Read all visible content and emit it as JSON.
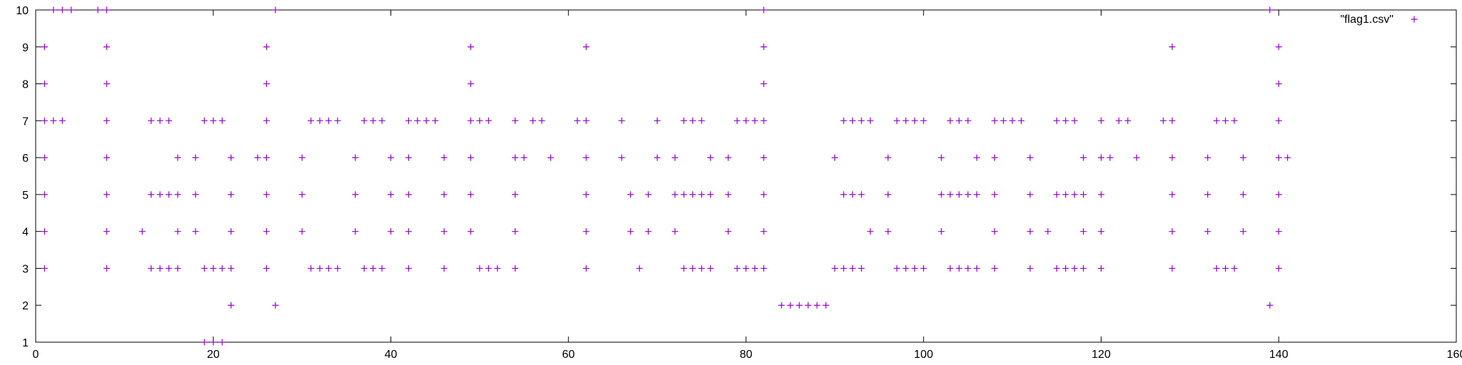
{
  "chart_data": {
    "type": "scatter",
    "title": "",
    "xlabel": "",
    "ylabel": "",
    "xlim": [
      0,
      160
    ],
    "ylim": [
      1,
      10
    ],
    "xticks": [
      0,
      20,
      40,
      60,
      80,
      100,
      120,
      140,
      160
    ],
    "yticks": [
      1,
      2,
      3,
      4,
      5,
      6,
      7,
      8,
      9,
      10
    ],
    "grid": false,
    "legend_position": "top-right",
    "series": [
      {
        "name": "\"flag1.csv\"",
        "color": "#9400d3",
        "marker": "plus",
        "points": [
          [
            1,
            3
          ],
          [
            1,
            4
          ],
          [
            1,
            5
          ],
          [
            1,
            6
          ],
          [
            1,
            7
          ],
          [
            1,
            8
          ],
          [
            1,
            9
          ],
          [
            2,
            7
          ],
          [
            2,
            10
          ],
          [
            3,
            7
          ],
          [
            3,
            10
          ],
          [
            4,
            10
          ],
          [
            7,
            10
          ],
          [
            8,
            3
          ],
          [
            8,
            4
          ],
          [
            8,
            5
          ],
          [
            8,
            6
          ],
          [
            8,
            7
          ],
          [
            8,
            8
          ],
          [
            8,
            9
          ],
          [
            8,
            10
          ],
          [
            12,
            4
          ],
          [
            13,
            3
          ],
          [
            13,
            5
          ],
          [
            13,
            7
          ],
          [
            14,
            3
          ],
          [
            14,
            5
          ],
          [
            14,
            7
          ],
          [
            15,
            3
          ],
          [
            15,
            5
          ],
          [
            15,
            7
          ],
          [
            16,
            3
          ],
          [
            16,
            4
          ],
          [
            16,
            5
          ],
          [
            16,
            6
          ],
          [
            18,
            4
          ],
          [
            18,
            5
          ],
          [
            18,
            6
          ],
          [
            19,
            1
          ],
          [
            19,
            3
          ],
          [
            19,
            7
          ],
          [
            20,
            1
          ],
          [
            20,
            3
          ],
          [
            20,
            7
          ],
          [
            21,
            1
          ],
          [
            21,
            3
          ],
          [
            21,
            7
          ],
          [
            22,
            2
          ],
          [
            22,
            3
          ],
          [
            22,
            4
          ],
          [
            22,
            5
          ],
          [
            22,
            6
          ],
          [
            25,
            6
          ],
          [
            26,
            3
          ],
          [
            26,
            4
          ],
          [
            26,
            5
          ],
          [
            26,
            6
          ],
          [
            26,
            7
          ],
          [
            26,
            8
          ],
          [
            26,
            9
          ],
          [
            27,
            2
          ],
          [
            27,
            10
          ],
          [
            30,
            4
          ],
          [
            30,
            5
          ],
          [
            30,
            6
          ],
          [
            31,
            3
          ],
          [
            31,
            7
          ],
          [
            32,
            3
          ],
          [
            32,
            7
          ],
          [
            33,
            3
          ],
          [
            33,
            7
          ],
          [
            34,
            3
          ],
          [
            34,
            7
          ],
          [
            36,
            4
          ],
          [
            36,
            5
          ],
          [
            36,
            6
          ],
          [
            37,
            3
          ],
          [
            37,
            7
          ],
          [
            38,
            3
          ],
          [
            38,
            7
          ],
          [
            39,
            3
          ],
          [
            39,
            7
          ],
          [
            40,
            4
          ],
          [
            40,
            5
          ],
          [
            40,
            6
          ],
          [
            42,
            3
          ],
          [
            42,
            4
          ],
          [
            42,
            5
          ],
          [
            42,
            6
          ],
          [
            42,
            7
          ],
          [
            43,
            7
          ],
          [
            44,
            7
          ],
          [
            45,
            7
          ],
          [
            46,
            3
          ],
          [
            46,
            4
          ],
          [
            46,
            5
          ],
          [
            46,
            6
          ],
          [
            49,
            4
          ],
          [
            49,
            5
          ],
          [
            49,
            6
          ],
          [
            49,
            7
          ],
          [
            49,
            8
          ],
          [
            49,
            9
          ],
          [
            50,
            3
          ],
          [
            50,
            7
          ],
          [
            51,
            3
          ],
          [
            51,
            7
          ],
          [
            52,
            3
          ],
          [
            54,
            3
          ],
          [
            54,
            4
          ],
          [
            54,
            5
          ],
          [
            54,
            6
          ],
          [
            54,
            7
          ],
          [
            55,
            6
          ],
          [
            56,
            7
          ],
          [
            57,
            7
          ],
          [
            58,
            6
          ],
          [
            61,
            7
          ],
          [
            62,
            3
          ],
          [
            62,
            4
          ],
          [
            62,
            5
          ],
          [
            62,
            6
          ],
          [
            62,
            7
          ],
          [
            62,
            9
          ],
          [
            66,
            6
          ],
          [
            66,
            7
          ],
          [
            67,
            4
          ],
          [
            67,
            5
          ],
          [
            68,
            3
          ],
          [
            69,
            4
          ],
          [
            69,
            5
          ],
          [
            70,
            6
          ],
          [
            70,
            7
          ],
          [
            72,
            4
          ],
          [
            72,
            5
          ],
          [
            72,
            6
          ],
          [
            73,
            3
          ],
          [
            73,
            5
          ],
          [
            73,
            7
          ],
          [
            74,
            3
          ],
          [
            74,
            5
          ],
          [
            74,
            7
          ],
          [
            75,
            3
          ],
          [
            75,
            5
          ],
          [
            75,
            7
          ],
          [
            76,
            3
          ],
          [
            76,
            5
          ],
          [
            76,
            6
          ],
          [
            78,
            4
          ],
          [
            78,
            5
          ],
          [
            78,
            6
          ],
          [
            79,
            3
          ],
          [
            79,
            7
          ],
          [
            80,
            3
          ],
          [
            80,
            7
          ],
          [
            81,
            3
          ],
          [
            81,
            7
          ],
          [
            82,
            3
          ],
          [
            82,
            4
          ],
          [
            82,
            5
          ],
          [
            82,
            6
          ],
          [
            82,
            7
          ],
          [
            82,
            8
          ],
          [
            82,
            9
          ],
          [
            82,
            10
          ],
          [
            84,
            2
          ],
          [
            85,
            2
          ],
          [
            86,
            2
          ],
          [
            87,
            2
          ],
          [
            88,
            2
          ],
          [
            89,
            2
          ],
          [
            90,
            3
          ],
          [
            90,
            6
          ],
          [
            91,
            3
          ],
          [
            91,
            5
          ],
          [
            91,
            7
          ],
          [
            92,
            3
          ],
          [
            92,
            5
          ],
          [
            92,
            7
          ],
          [
            93,
            3
          ],
          [
            93,
            5
          ],
          [
            93,
            7
          ],
          [
            94,
            4
          ],
          [
            94,
            7
          ],
          [
            96,
            4
          ],
          [
            96,
            5
          ],
          [
            96,
            6
          ],
          [
            97,
            3
          ],
          [
            97,
            7
          ],
          [
            98,
            3
          ],
          [
            98,
            7
          ],
          [
            99,
            3
          ],
          [
            99,
            7
          ],
          [
            100,
            3
          ],
          [
            100,
            7
          ],
          [
            102,
            4
          ],
          [
            102,
            5
          ],
          [
            102,
            6
          ],
          [
            103,
            3
          ],
          [
            103,
            5
          ],
          [
            103,
            7
          ],
          [
            104,
            3
          ],
          [
            104,
            5
          ],
          [
            104,
            7
          ],
          [
            105,
            3
          ],
          [
            105,
            5
          ],
          [
            105,
            7
          ],
          [
            106,
            3
          ],
          [
            106,
            5
          ],
          [
            106,
            6
          ],
          [
            108,
            3
          ],
          [
            108,
            4
          ],
          [
            108,
            5
          ],
          [
            108,
            6
          ],
          [
            108,
            7
          ],
          [
            109,
            7
          ],
          [
            110,
            7
          ],
          [
            111,
            7
          ],
          [
            112,
            3
          ],
          [
            112,
            4
          ],
          [
            112,
            5
          ],
          [
            112,
            6
          ],
          [
            114,
            4
          ],
          [
            115,
            3
          ],
          [
            115,
            5
          ],
          [
            115,
            7
          ],
          [
            116,
            3
          ],
          [
            116,
            5
          ],
          [
            116,
            7
          ],
          [
            117,
            3
          ],
          [
            117,
            5
          ],
          [
            117,
            7
          ],
          [
            118,
            3
          ],
          [
            118,
            4
          ],
          [
            118,
            5
          ],
          [
            118,
            6
          ],
          [
            120,
            3
          ],
          [
            120,
            4
          ],
          [
            120,
            5
          ],
          [
            120,
            6
          ],
          [
            120,
            7
          ],
          [
            121,
            6
          ],
          [
            122,
            7
          ],
          [
            123,
            7
          ],
          [
            124,
            6
          ],
          [
            127,
            7
          ],
          [
            128,
            3
          ],
          [
            128,
            4
          ],
          [
            128,
            5
          ],
          [
            128,
            6
          ],
          [
            128,
            7
          ],
          [
            128,
            9
          ],
          [
            132,
            4
          ],
          [
            132,
            5
          ],
          [
            132,
            6
          ],
          [
            133,
            3
          ],
          [
            133,
            7
          ],
          [
            134,
            3
          ],
          [
            134,
            7
          ],
          [
            135,
            3
          ],
          [
            135,
            7
          ],
          [
            136,
            4
          ],
          [
            136,
            5
          ],
          [
            136,
            6
          ],
          [
            139,
            2
          ],
          [
            139,
            10
          ],
          [
            140,
            3
          ],
          [
            140,
            4
          ],
          [
            140,
            5
          ],
          [
            140,
            6
          ],
          [
            140,
            7
          ],
          [
            140,
            8
          ],
          [
            140,
            9
          ],
          [
            141,
            6
          ]
        ]
      }
    ]
  }
}
